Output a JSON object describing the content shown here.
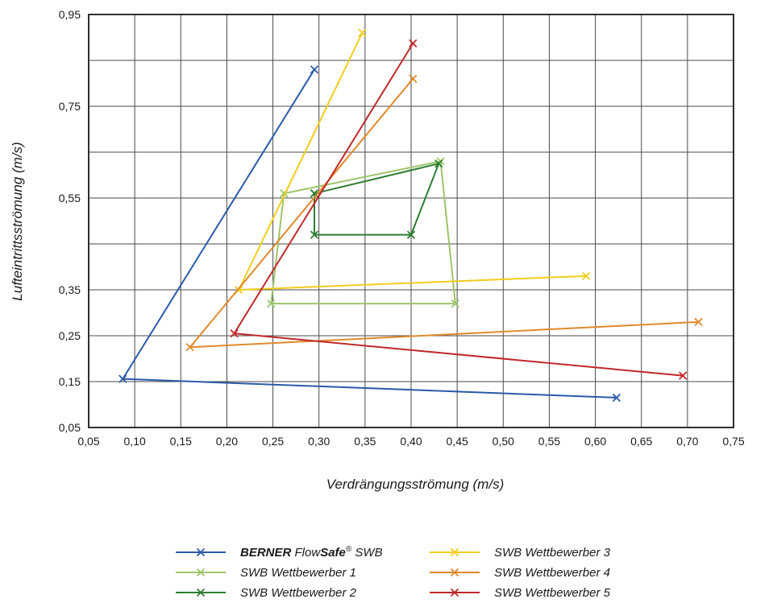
{
  "chart_data": {
    "type": "line",
    "xlabel": "Verdrängungsströmung (m/s)",
    "ylabel": "Lufteintrittsströmung (m/s)",
    "xlim": [
      0.05,
      0.75
    ],
    "ylim": [
      0.05,
      0.95
    ],
    "x_ticks": [
      "0,05",
      "0,10",
      "0,15",
      "0,20",
      "0,25",
      "0,30",
      "0,35",
      "0,40",
      "0,45",
      "0,50",
      "0,55",
      "0,60",
      "0,65",
      "0,70",
      "0,75"
    ],
    "y_ticks": [
      "0,95",
      "0,75",
      "0,55",
      "0,35",
      "0,25",
      "0,15",
      "0,05"
    ],
    "grid": true,
    "legend_position": "bottom",
    "series": [
      {
        "name": "BERNER FlowSafe® SWB",
        "legend_parts": [
          "BERNER",
          " Flow",
          "Safe",
          "®",
          " SWB"
        ],
        "color": "#2a5aa8",
        "points": [
          [
            0.295,
            0.83
          ],
          [
            0.087,
            0.156
          ],
          [
            0.623,
            0.115
          ]
        ]
      },
      {
        "name": "SWB Wettbewerber 1",
        "color": "#9cc56a",
        "points": [
          [
            0.262,
            0.56
          ],
          [
            0.432,
            0.63
          ],
          [
            0.448,
            0.32
          ],
          [
            0.248,
            0.32
          ],
          [
            0.262,
            0.56
          ]
        ]
      },
      {
        "name": "SWB Wettbewerber 2",
        "color": "#2e7d32",
        "points": [
          [
            0.295,
            0.56
          ],
          [
            0.43,
            0.625
          ],
          [
            0.4,
            0.47
          ],
          [
            0.295,
            0.47
          ],
          [
            0.295,
            0.56
          ]
        ]
      },
      {
        "name": "SWB Wettbewerber 3",
        "color": "#f2cc1c",
        "points": [
          [
            0.347,
            0.91
          ],
          [
            0.213,
            0.35
          ],
          [
            0.59,
            0.38
          ]
        ]
      },
      {
        "name": "SWB Wettbewerber 4",
        "color": "#e08a2c",
        "points": [
          [
            0.402,
            0.81
          ],
          [
            0.16,
            0.225
          ],
          [
            0.712,
            0.28
          ]
        ]
      },
      {
        "name": "SWB Wettbewerber 5",
        "color": "#c0282a",
        "points": [
          [
            0.402,
            0.887
          ],
          [
            0.208,
            0.255
          ],
          [
            0.695,
            0.163
          ]
        ]
      }
    ]
  }
}
